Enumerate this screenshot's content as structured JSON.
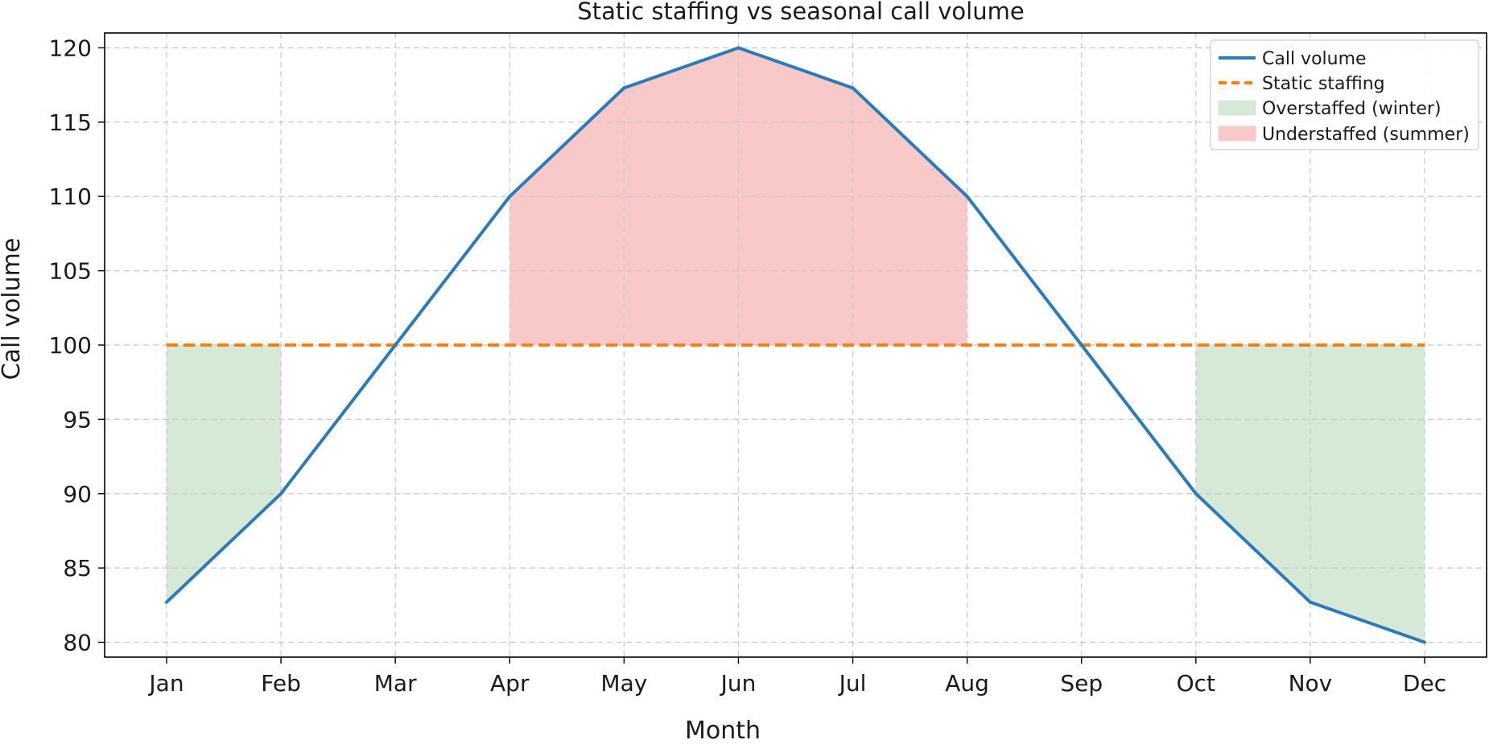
{
  "chart_data": {
    "type": "line",
    "title": "Static staffing vs seasonal call volume",
    "xlabel": "Month",
    "ylabel": "Call volume",
    "categories": [
      "Jan",
      "Feb",
      "Mar",
      "Apr",
      "May",
      "Jun",
      "Jul",
      "Aug",
      "Sep",
      "Oct",
      "Nov",
      "Dec"
    ],
    "ylim": [
      79,
      121
    ],
    "yticks": [
      80,
      85,
      90,
      95,
      100,
      105,
      110,
      115,
      120
    ],
    "grid": true,
    "legend_position": "top-right",
    "series": [
      {
        "name": "Call volume",
        "style": "solid",
        "color": "#2b7bba",
        "values": [
          82.7,
          90,
          100,
          110,
          117.3,
          120,
          117.3,
          110,
          100,
          90,
          82.7,
          80
        ]
      },
      {
        "name": "Static staffing",
        "style": "dashed",
        "color": "#ff7f0e",
        "values": [
          100,
          100,
          100,
          100,
          100,
          100,
          100,
          100,
          100,
          100,
          100,
          100
        ]
      }
    ],
    "shaded_regions": [
      {
        "name": "Overstaffed (winter)",
        "color": "#d6e9d6",
        "spans": [
          [
            "Jan",
            "Feb"
          ],
          [
            "Oct",
            "Dec"
          ]
        ]
      },
      {
        "name": "Understaffed (summer)",
        "color": "#f9c9c9",
        "spans": [
          [
            "Apr",
            "Aug"
          ]
        ]
      }
    ]
  }
}
